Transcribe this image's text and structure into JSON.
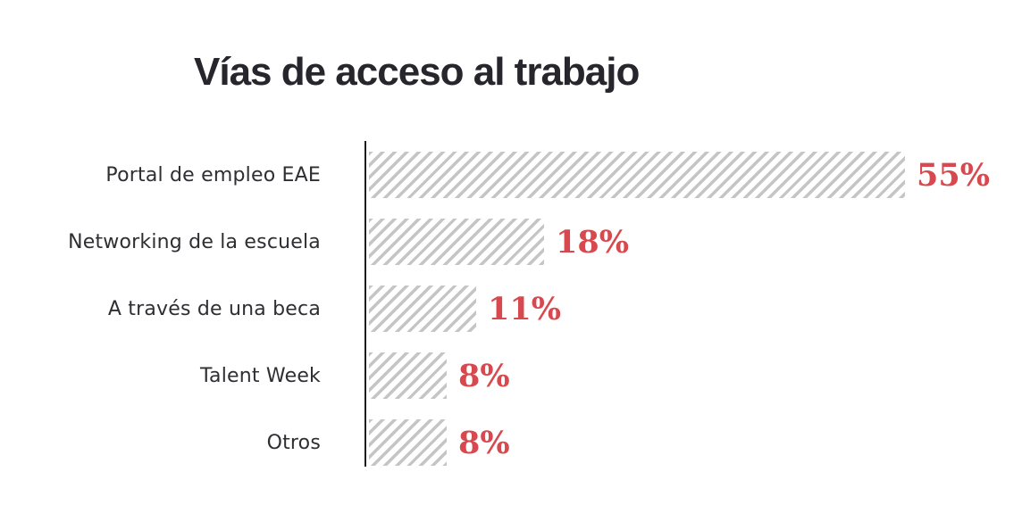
{
  "chart_data": {
    "type": "bar",
    "orientation": "horizontal",
    "title": "Vías de acceso al trabajo",
    "categories": [
      "Portal de empleo EAE",
      "Networking de la escuela",
      "A través de una beca",
      "Talent Week",
      "Otros"
    ],
    "values": [
      55,
      18,
      11,
      8,
      8
    ],
    "value_labels": [
      "55%",
      "18%",
      "11%",
      "8%",
      "8%"
    ],
    "unit": "%",
    "xlim": [
      0,
      55
    ],
    "grid": false,
    "legend": false,
    "bar_style": "diagonal-hatch",
    "colors": {
      "background": "#ffffff",
      "title": "#26262c",
      "category_label": "#2e2e33",
      "value_label": "#d7494f",
      "hatch": "#c5c5c5",
      "axis": "#1c1c1c"
    }
  }
}
